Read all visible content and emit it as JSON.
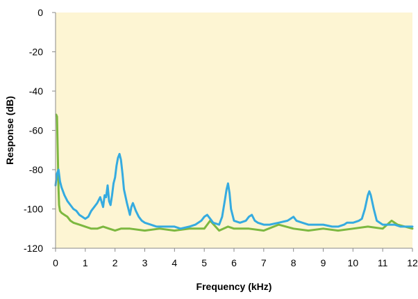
{
  "colors": {
    "plot_background": "#FDF5D3",
    "axis": "#8a8a8a",
    "series_blue": "#35ABE0",
    "series_green": "#7DB840"
  },
  "chart_data": {
    "type": "line",
    "xlabel": "Frequency (kHz)",
    "ylabel": "Response (dB)",
    "xlim": [
      0,
      12
    ],
    "ylim": [
      -120,
      0
    ],
    "xticks": [
      0,
      1,
      2,
      3,
      4,
      5,
      6,
      7,
      8,
      9,
      10,
      11,
      12
    ],
    "yticks": [
      0,
      -20,
      -40,
      -60,
      -80,
      -100,
      -120
    ],
    "grid": false,
    "legend": "none",
    "series": [
      {
        "color": "#7DB840",
        "x": [
          0.02,
          0.05,
          0.08,
          0.1,
          0.12,
          0.15,
          0.2,
          0.3,
          0.4,
          0.5,
          0.6,
          0.8,
          1.0,
          1.2,
          1.4,
          1.6,
          1.8,
          2.0,
          2.2,
          2.5,
          3.0,
          3.5,
          4.0,
          4.5,
          5.0,
          5.2,
          5.5,
          5.8,
          6.0,
          6.5,
          7.0,
          7.5,
          8.0,
          8.5,
          9.0,
          9.5,
          10.0,
          10.5,
          11.0,
          11.3,
          11.5,
          12.0
        ],
        "y": [
          -52,
          -53,
          -75,
          -90,
          -98,
          -101,
          -102,
          -103,
          -104,
          -106,
          -107,
          -108,
          -109,
          -110,
          -110,
          -109,
          -110,
          -111,
          -110,
          -110,
          -111,
          -110,
          -111,
          -110,
          -110,
          -106,
          -111,
          -109,
          -110,
          -110,
          -111,
          -108,
          -110,
          -111,
          -110,
          -111,
          -110,
          -109,
          -110,
          -106,
          -108,
          -110
        ]
      },
      {
        "color": "#35ABE0",
        "x": [
          0.0,
          0.05,
          0.1,
          0.15,
          0.2,
          0.3,
          0.4,
          0.5,
          0.6,
          0.7,
          0.8,
          0.9,
          1.0,
          1.1,
          1.2,
          1.3,
          1.4,
          1.5,
          1.6,
          1.65,
          1.7,
          1.75,
          1.8,
          1.85,
          1.9,
          1.95,
          2.0,
          2.05,
          2.1,
          2.15,
          2.2,
          2.25,
          2.3,
          2.4,
          2.5,
          2.55,
          2.6,
          2.7,
          2.8,
          2.9,
          3.0,
          3.2,
          3.4,
          3.6,
          3.8,
          4.0,
          4.2,
          4.5,
          4.7,
          4.9,
          5.0,
          5.1,
          5.2,
          5.3,
          5.5,
          5.6,
          5.7,
          5.75,
          5.8,
          5.85,
          5.9,
          6.0,
          6.2,
          6.4,
          6.5,
          6.6,
          6.7,
          6.8,
          7.0,
          7.2,
          7.5,
          7.8,
          7.9,
          8.0,
          8.1,
          8.3,
          8.5,
          8.8,
          9.0,
          9.3,
          9.5,
          9.7,
          9.8,
          10.0,
          10.2,
          10.3,
          10.4,
          10.5,
          10.55,
          10.6,
          10.7,
          10.8,
          10.9,
          11.0,
          11.2,
          11.4,
          11.6,
          11.8,
          12.0
        ],
        "y": [
          -88,
          -82,
          -80,
          -86,
          -89,
          -93,
          -96,
          -98,
          -100,
          -101,
          -103,
          -104,
          -105,
          -104,
          -101,
          -99,
          -97,
          -94,
          -99,
          -93,
          -94,
          -88,
          -96,
          -98,
          -93,
          -87,
          -84,
          -78,
          -74,
          -72,
          -75,
          -82,
          -90,
          -97,
          -103,
          -99,
          -97,
          -101,
          -104,
          -106,
          -107,
          -108,
          -109,
          -109,
          -109,
          -109,
          -110,
          -109,
          -108,
          -106,
          -104,
          -103,
          -105,
          -107,
          -108,
          -104,
          -95,
          -90,
          -87,
          -92,
          -100,
          -106,
          -107,
          -106,
          -104,
          -103,
          -106,
          -107,
          -108,
          -108,
          -107,
          -106,
          -105,
          -104,
          -106,
          -107,
          -108,
          -108,
          -108,
          -109,
          -109,
          -108,
          -107,
          -107,
          -106,
          -105,
          -100,
          -93,
          -91,
          -93,
          -100,
          -106,
          -107,
          -108,
          -108,
          -108,
          -109,
          -109,
          -109
        ]
      }
    ]
  }
}
